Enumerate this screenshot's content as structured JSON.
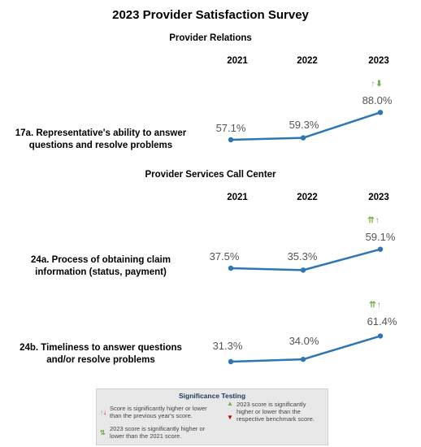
{
  "title": "2023 Provider Satisfaction Survey",
  "years": [
    "2021",
    "2022",
    "2023"
  ],
  "colors": {
    "line": "#2e75b6",
    "up_green": "#70ad47",
    "down_red": "#c00000",
    "legend_title": "#1f3864"
  },
  "chart_data": [
    {
      "type": "line",
      "section": "Provider Relations",
      "label": "17a. Representative's ability to answer questions and resolve problems",
      "x": [
        "2021",
        "2022",
        "2023"
      ],
      "values": [
        57.1,
        59.3,
        88.0
      ],
      "value_labels": [
        "57.1%",
        "59.3%",
        "88.0%"
      ],
      "significance": "↑⬇"
    },
    {
      "type": "line",
      "section": "Provider Services Call Center",
      "label": "24a. Process of obtaining claim information (status, payment)",
      "x": [
        "2021",
        "2022",
        "2023"
      ],
      "values": [
        37.5,
        35.3,
        59.1
      ],
      "value_labels": [
        "37.5%",
        "35.3%",
        "59.1%"
      ],
      "significance": "⇈↑"
    },
    {
      "type": "line",
      "section": "Provider Services Call Center",
      "label": "24b. Timeliness to answer questions and/or resolve problems",
      "x": [
        "2021",
        "2022",
        "2023"
      ],
      "values": [
        31.3,
        34.0,
        61.4
      ],
      "value_labels": [
        "31.3%",
        "34.0%",
        "61.4%"
      ],
      "significance": "⇈↑"
    }
  ],
  "sections": {
    "provider_relations": "Provider Relations",
    "call_center": "Provider Services Call Center"
  },
  "labels": {
    "q17a_line1": "17a. Representative's ability to answer",
    "q17a_line2": "questions and resolve problems",
    "q24a_line1": "24a. Process of obtaining claim",
    "q24a_line2": "information (status, payment)",
    "q24b_line1": "24b. Timeliness to answer questions",
    "q24b_line2": "and/or resolve problems"
  },
  "legend": {
    "title": "Significance Testing",
    "item1_line1": "Score is significantly higher or lower",
    "item1_line2": "than the previous year's score.",
    "item2_line1": "2023 score is significantly higher or",
    "item2_line2": "lower than the 2021 score.",
    "item3_line1": "2023 score is significantly",
    "item3_line2": "higher or lower than the",
    "item3_line3": "respective benchmark score."
  }
}
